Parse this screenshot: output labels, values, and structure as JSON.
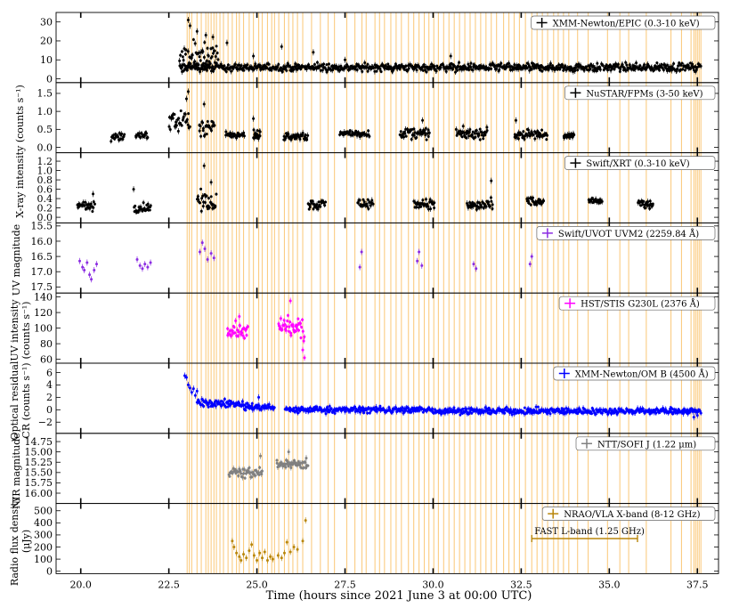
{
  "chart_data": {
    "type": "scatter",
    "xlabel": "Time (hours since 2021 June 3 at 00:00 UTC)",
    "xlim": [
      19.3,
      38.1
    ],
    "x_ticks": [
      "20.0",
      "22.5",
      "25.0",
      "27.5",
      "30.0",
      "32.5",
      "35.0",
      "37.5"
    ],
    "x_tick_values": [
      20.0,
      22.5,
      25.0,
      27.5,
      30.0,
      32.5,
      35.0,
      37.5
    ],
    "shared_ylabels": [
      "X-ray intensity (counts s⁻¹)"
    ],
    "orange_line_times": [
      23.02,
      23.08,
      23.15,
      23.3,
      23.42,
      23.55,
      23.62,
      23.7,
      23.78,
      23.85,
      23.95,
      24.05,
      24.18,
      24.3,
      24.42,
      24.5,
      24.62,
      24.78,
      24.9,
      25.05,
      25.15,
      25.3,
      25.42,
      25.5,
      25.62,
      25.78,
      25.9,
      26.02,
      26.15,
      26.3,
      26.55,
      26.8,
      27.02,
      27.2,
      27.55,
      27.78,
      27.98,
      28.1,
      28.35,
      28.48,
      28.62,
      28.8,
      28.95,
      29.1,
      29.3,
      29.45,
      29.6,
      29.75,
      29.88,
      30.02,
      30.15,
      30.3,
      30.45,
      30.6,
      30.75,
      30.9,
      31.05,
      31.2,
      31.35,
      31.5,
      31.65,
      31.8,
      32.0,
      32.15,
      32.3,
      32.45,
      32.62,
      32.8,
      32.95,
      33.1,
      33.25,
      33.42,
      33.55,
      33.7,
      33.85,
      34.1,
      34.4,
      34.95,
      35.3,
      35.55,
      36.05,
      36.75,
      37.05,
      37.32,
      37.4,
      37.45,
      37.5,
      37.55,
      37.6
    ],
    "panels": [
      {
        "legend": "XMM-Newton/EPIC (0.3-10 keV)",
        "color": "#000000",
        "ylim": [
          -2,
          35
        ],
        "yticks": [
          0,
          10,
          20,
          30
        ],
        "ytick_labels": [
          "0",
          "10",
          "20",
          "30"
        ],
        "segments": [
          {
            "x": [
              22.8,
              37.6
            ],
            "baseline": 6.0,
            "scatter": 2.0
          },
          {
            "x": [
              22.8,
              23.9
            ],
            "baseline": 12.0,
            "scatter": 7.0
          }
        ],
        "points": [
          {
            "x": 23.05,
            "y": 31
          },
          {
            "x": 23.1,
            "y": 28
          },
          {
            "x": 23.3,
            "y": 25
          },
          {
            "x": 23.55,
            "y": 23
          },
          {
            "x": 23.75,
            "y": 22
          },
          {
            "x": 24.15,
            "y": 19
          },
          {
            "x": 24.9,
            "y": 12
          },
          {
            "x": 25.7,
            "y": 17
          },
          {
            "x": 26.6,
            "y": 14
          },
          {
            "x": 27.5,
            "y": 10
          },
          {
            "x": 30.5,
            "y": 12
          }
        ]
      },
      {
        "legend": "NuSTAR/FPMs (3-50 keV)",
        "color": "#000000",
        "ylim": [
          -0.15,
          1.8
        ],
        "yticks": [
          0.0,
          0.5,
          1.0,
          1.5
        ],
        "ytick_labels": [
          "0.0",
          "0.5",
          "1.0",
          "1.5"
        ],
        "segments": [
          {
            "x": [
              20.85,
              21.25
            ],
            "baseline": 0.32,
            "scatter": 0.12
          },
          {
            "x": [
              21.55,
              21.9
            ],
            "baseline": 0.32,
            "scatter": 0.12
          },
          {
            "x": [
              22.5,
              23.1
            ],
            "baseline": 0.75,
            "scatter": 0.3
          },
          {
            "x": [
              23.35,
              23.8
            ],
            "baseline": 0.55,
            "scatter": 0.25
          },
          {
            "x": [
              24.1,
              24.65
            ],
            "baseline": 0.35,
            "scatter": 0.1
          },
          {
            "x": [
              24.9,
              25.1
            ],
            "baseline": 0.35,
            "scatter": 0.15
          },
          {
            "x": [
              25.75,
              26.45
            ],
            "baseline": 0.3,
            "scatter": 0.12
          },
          {
            "x": [
              27.35,
              28.2
            ],
            "baseline": 0.38,
            "scatter": 0.08
          },
          {
            "x": [
              29.05,
              29.9
            ],
            "baseline": 0.38,
            "scatter": 0.15
          },
          {
            "x": [
              30.65,
              31.55
            ],
            "baseline": 0.38,
            "scatter": 0.15
          },
          {
            "x": [
              32.3,
              33.25
            ],
            "baseline": 0.35,
            "scatter": 0.12
          },
          {
            "x": [
              33.7,
              34.0
            ],
            "baseline": 0.32,
            "scatter": 0.08
          }
        ],
        "points": [
          {
            "x": 23.0,
            "y": 1.35
          },
          {
            "x": 23.05,
            "y": 1.55
          },
          {
            "x": 23.5,
            "y": 1.2
          },
          {
            "x": 24.9,
            "y": 0.8
          },
          {
            "x": 32.35,
            "y": 0.75
          },
          {
            "x": 29.7,
            "y": 0.75
          }
        ]
      },
      {
        "legend": "Swift/XRT (0.3-10 keV)",
        "color": "#000000",
        "ylim": [
          -0.12,
          1.38
        ],
        "yticks": [
          0.0,
          0.2,
          0.4,
          0.6,
          0.8,
          1.0,
          1.2
        ],
        "ytick_labels": [
          "0.0",
          "0.2",
          "0.4",
          "0.6",
          "0.8",
          "1.0",
          "1.2"
        ],
        "segments": [
          {
            "x": [
              19.9,
              20.4
            ],
            "baseline": 0.25,
            "scatter": 0.12
          },
          {
            "x": [
              21.5,
              22.0
            ],
            "baseline": 0.2,
            "scatter": 0.1
          },
          {
            "x": [
              23.3,
              23.85
            ],
            "baseline": 0.35,
            "scatter": 0.2
          },
          {
            "x": [
              26.45,
              26.95
            ],
            "baseline": 0.28,
            "scatter": 0.1
          },
          {
            "x": [
              27.85,
              28.3
            ],
            "baseline": 0.3,
            "scatter": 0.1
          },
          {
            "x": [
              29.45,
              30.05
            ],
            "baseline": 0.28,
            "scatter": 0.1
          },
          {
            "x": [
              30.95,
              31.7
            ],
            "baseline": 0.25,
            "scatter": 0.12
          },
          {
            "x": [
              32.65,
              33.15
            ],
            "baseline": 0.32,
            "scatter": 0.1
          },
          {
            "x": [
              34.4,
              34.8
            ],
            "baseline": 0.35,
            "scatter": 0.06
          },
          {
            "x": [
              35.8,
              36.25
            ],
            "baseline": 0.28,
            "scatter": 0.08
          }
        ],
        "points": [
          {
            "x": 23.5,
            "y": 1.1
          },
          {
            "x": 23.7,
            "y": 0.75
          },
          {
            "x": 31.65,
            "y": 0.78
          },
          {
            "x": 21.5,
            "y": 0.6
          },
          {
            "x": 20.35,
            "y": 0.5
          }
        ]
      },
      {
        "legend": "Swift/UVOT UVM2 (2259.84 Å)",
        "color": "#8a2be2",
        "ylim": [
          17.7,
          15.4
        ],
        "yticks": [
          15.5,
          16.0,
          16.5,
          17.0,
          17.5
        ],
        "ytick_labels": [
          "15.5",
          "16.0",
          "16.5",
          "17.0",
          "17.5"
        ],
        "points": [
          {
            "x": 19.97,
            "y": 16.65
          },
          {
            "x": 20.05,
            "y": 16.85
          },
          {
            "x": 20.1,
            "y": 16.95
          },
          {
            "x": 20.18,
            "y": 16.7
          },
          {
            "x": 20.25,
            "y": 17.1
          },
          {
            "x": 20.3,
            "y": 17.25
          },
          {
            "x": 20.38,
            "y": 16.95
          },
          {
            "x": 20.45,
            "y": 16.75
          },
          {
            "x": 21.6,
            "y": 16.6
          },
          {
            "x": 21.68,
            "y": 16.8
          },
          {
            "x": 21.75,
            "y": 16.9
          },
          {
            "x": 21.82,
            "y": 16.75
          },
          {
            "x": 21.9,
            "y": 16.85
          },
          {
            "x": 21.98,
            "y": 16.7
          },
          {
            "x": 23.38,
            "y": 16.35
          },
          {
            "x": 23.45,
            "y": 16.05
          },
          {
            "x": 23.52,
            "y": 16.25
          },
          {
            "x": 23.6,
            "y": 16.6
          },
          {
            "x": 23.7,
            "y": 16.4
          },
          {
            "x": 23.78,
            "y": 16.55
          },
          {
            "x": 27.92,
            "y": 16.85
          },
          {
            "x": 27.97,
            "y": 16.35
          },
          {
            "x": 29.55,
            "y": 16.65
          },
          {
            "x": 29.6,
            "y": 16.35
          },
          {
            "x": 29.68,
            "y": 16.8
          },
          {
            "x": 31.15,
            "y": 16.75
          },
          {
            "x": 31.22,
            "y": 16.9
          },
          {
            "x": 32.75,
            "y": 16.75
          },
          {
            "x": 32.8,
            "y": 16.5
          }
        ]
      },
      {
        "legend": "HST/STIS G230L (2376 Å)",
        "color": "#ff00ff",
        "ylim": [
          55,
          145
        ],
        "yticks": [
          60,
          80,
          100,
          120,
          140
        ],
        "ytick_labels": [
          "60",
          "80",
          "100",
          "120",
          "140"
        ],
        "segments": [
          {
            "x": [
              24.15,
              24.75
            ],
            "baseline": 97,
            "scatter": 10
          },
          {
            "x": [
              25.6,
              26.35
            ],
            "baseline": 100,
            "scatter": 14
          }
        ],
        "points": [
          {
            "x": 25.95,
            "y": 135
          },
          {
            "x": 24.5,
            "y": 115
          },
          {
            "x": 26.3,
            "y": 72
          },
          {
            "x": 26.35,
            "y": 62
          }
        ]
      },
      {
        "legend": "XMM-Newton/OM B (4500 Å)",
        "color": "#0000ff",
        "ylim": [
          -3.8,
          7.5
        ],
        "yticks": [
          -2,
          0,
          2,
          4,
          6
        ],
        "ytick_labels": [
          "−2",
          "0",
          "2",
          "4",
          "6"
        ],
        "segments": [
          {
            "x": [
              23.3,
              24.6
            ],
            "baseline": 1.0,
            "scatter": 0.6
          },
          {
            "x": [
              24.6,
              25.5
            ],
            "baseline": 0.4,
            "scatter": 0.6
          },
          {
            "x": [
              25.8,
              30.0
            ],
            "baseline": 0.0,
            "scatter": 0.5
          },
          {
            "x": [
              30.0,
              37.6
            ],
            "baseline": -0.2,
            "scatter": 0.5
          }
        ],
        "points": [
          {
            "x": 22.95,
            "y": 5.5
          },
          {
            "x": 23.0,
            "y": 5.2
          },
          {
            "x": 23.05,
            "y": 4.0
          },
          {
            "x": 23.1,
            "y": 3.5
          },
          {
            "x": 23.15,
            "y": 2.8
          },
          {
            "x": 23.2,
            "y": 3.4
          },
          {
            "x": 23.25,
            "y": 2.3
          },
          {
            "x": 23.3,
            "y": 3.0
          },
          {
            "x": 25.05,
            "y": 2.0
          },
          {
            "x": 37.4,
            "y": -1.2
          },
          {
            "x": 37.5,
            "y": -0.9
          }
        ]
      },
      {
        "legend": "NTT/SOFI J (1.22 μm)",
        "color": "#808080",
        "ylim": [
          16.25,
          14.55
        ],
        "yticks": [
          14.75,
          15.0,
          15.25,
          15.5,
          15.75,
          16.0
        ],
        "ytick_labels": [
          "14.75",
          "15.00",
          "15.25",
          "15.50",
          "15.75",
          "16.00"
        ],
        "segments": [
          {
            "x": [
              24.2,
              25.15
            ],
            "baseline": 15.5,
            "scatter": 0.12
          },
          {
            "x": [
              25.55,
              26.45
            ],
            "baseline": 15.3,
            "scatter": 0.1
          }
        ],
        "points": [
          {
            "x": 25.1,
            "y": 15.1
          },
          {
            "x": 25.9,
            "y": 15.0
          },
          {
            "x": 26.4,
            "y": 15.15
          }
        ]
      },
      {
        "legend": "NRAO/VLA X-band (8-12 GHz)",
        "color": "#b8860b",
        "ylim": [
          -20,
          560
        ],
        "yticks": [
          0,
          100,
          200,
          300,
          400,
          500
        ],
        "ytick_labels": [
          "0",
          "100",
          "200",
          "300",
          "400",
          "500"
        ],
        "points": [
          {
            "x": 24.3,
            "y": 250
          },
          {
            "x": 24.35,
            "y": 200
          },
          {
            "x": 24.42,
            "y": 150
          },
          {
            "x": 24.5,
            "y": 120
          },
          {
            "x": 24.55,
            "y": 90
          },
          {
            "x": 24.62,
            "y": 140
          },
          {
            "x": 24.7,
            "y": 110
          },
          {
            "x": 24.78,
            "y": 170
          },
          {
            "x": 24.85,
            "y": 220
          },
          {
            "x": 24.92,
            "y": 130
          },
          {
            "x": 25.0,
            "y": 90
          },
          {
            "x": 25.08,
            "y": 150
          },
          {
            "x": 25.15,
            "y": 110
          },
          {
            "x": 25.22,
            "y": 160
          },
          {
            "x": 25.3,
            "y": 90
          },
          {
            "x": 25.38,
            "y": 120
          },
          {
            "x": 25.45,
            "y": 100
          },
          {
            "x": 25.6,
            "y": 130
          },
          {
            "x": 25.7,
            "y": 110
          },
          {
            "x": 25.78,
            "y": 150
          },
          {
            "x": 25.85,
            "y": 240
          },
          {
            "x": 25.95,
            "y": 160
          },
          {
            "x": 26.05,
            "y": 200
          },
          {
            "x": 26.15,
            "y": 180
          },
          {
            "x": 26.3,
            "y": 250
          },
          {
            "x": 26.38,
            "y": 420
          }
        ],
        "extra_legend": {
          "label": "FAST L-band (1.25 GHz)",
          "x": [
            32.8,
            35.8
          ],
          "y": 270
        }
      }
    ]
  },
  "ylabels": {
    "xray": "X-ray intensity (counts s⁻¹)",
    "uvmag": "UV magnitude",
    "uvint_1": "UV intensity",
    "uvint_2": "(counts s⁻¹)",
    "opt_1": "Optical residual",
    "opt_2": "CR (counts s⁻¹)",
    "nir": "NIR magnitude",
    "radio_1": "Radio flux density",
    "radio_2": "(μJy)"
  },
  "colors": {
    "orange_band": "#f7a21b"
  }
}
